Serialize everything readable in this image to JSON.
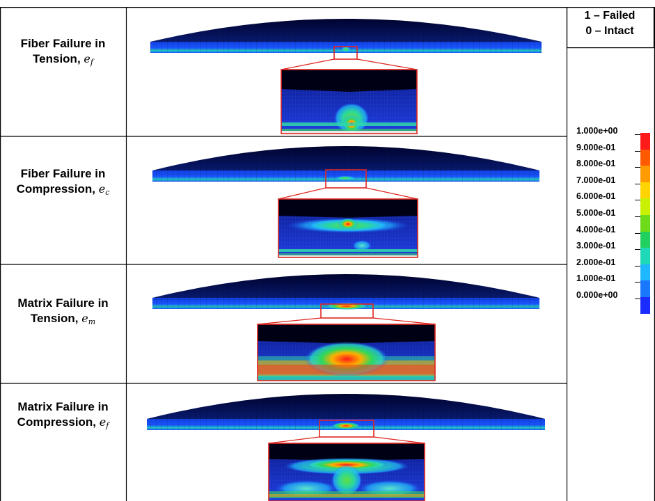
{
  "rows": [
    {
      "title_line1": "Fiber Failure in",
      "title_line2": "Tension,",
      "symbol": "e",
      "subscript": "f"
    },
    {
      "title_line1": "Fiber Failure in",
      "title_line2": "Compression,",
      "symbol": "e",
      "subscript": "c"
    },
    {
      "title_line1": "Matrix Failure in",
      "title_line2": "Tension,",
      "symbol": "e",
      "subscript": "m"
    },
    {
      "title_line1": "Matrix Failure in",
      "title_line2": "Compression,",
      "symbol": "e",
      "subscript": "f"
    }
  ],
  "status": {
    "failed": "1 – Failed",
    "intact": "0 – Intact"
  },
  "colorbar": {
    "labels": [
      "1.000e+00",
      "9.000e-01",
      "8.000e-01",
      "7.000e-01",
      "6.000e-01",
      "5.000e-01",
      "4.000e-01",
      "3.000e-01",
      "2.000e-01",
      "1.000e-01",
      "0.000e+00"
    ],
    "colors": [
      "#ff1a1a",
      "#ff5a00",
      "#ff9a00",
      "#ffd400",
      "#c8f000",
      "#6edb1a",
      "#22d060",
      "#1fd8b8",
      "#1fb8ff",
      "#1a78ff",
      "#1a2cff"
    ]
  },
  "colors": {
    "damage_box": "#e0261f",
    "shell_top": "#05064d",
    "shell_edge": "#0a1e8c"
  }
}
